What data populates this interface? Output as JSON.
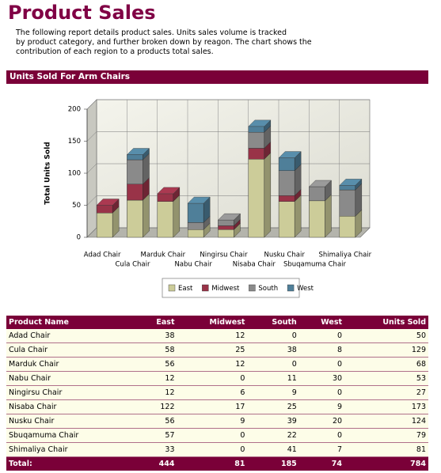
{
  "header": {
    "title": "Product Sales",
    "description": "The following report details product sales.  Units sales volume is tracked\nby product category, and further broken down by reagon.  The chart shows the\ncontribution of each region to a products total sales."
  },
  "chart_data": {
    "type": "bar",
    "stacked": true,
    "title": "Units Sold For Arm Chairs",
    "y_label": "Total Units Sold",
    "categories": [
      "Adad Chair",
      "Cula Chair",
      "Marduk Chair",
      "Nabu Chair",
      "Ningirsu Chair",
      "Nisaba Chair",
      "Nusku Chair",
      "Sbuqamuma Chair",
      "Shimaliya Chair"
    ],
    "series": [
      {
        "name": "East",
        "color": "#cccc99",
        "values": [
          38,
          58,
          56,
          12,
          12,
          122,
          56,
          57,
          33
        ]
      },
      {
        "name": "Midwest",
        "color": "#993348",
        "values": [
          12,
          25,
          12,
          0,
          6,
          17,
          9,
          0,
          0
        ]
      },
      {
        "name": "South",
        "color": "#8a8a8a",
        "values": [
          0,
          38,
          0,
          11,
          9,
          25,
          39,
          22,
          41
        ]
      },
      {
        "name": "West",
        "color": "#4f7f99",
        "values": [
          0,
          8,
          0,
          30,
          0,
          9,
          20,
          0,
          7
        ]
      }
    ],
    "ylim": [
      0,
      200
    ],
    "yticks": [
      0,
      50,
      100,
      150,
      200
    ],
    "grid": true,
    "legend": "bottom"
  },
  "table": {
    "columns": [
      "Product Name",
      "East",
      "Midwest",
      "South",
      "West",
      "Units Sold"
    ],
    "rows": [
      [
        "Adad Chair",
        38,
        12,
        0,
        0,
        50
      ],
      [
        "Cula Chair",
        58,
        25,
        38,
        8,
        129
      ],
      [
        "Marduk Chair",
        56,
        12,
        0,
        0,
        68
      ],
      [
        "Nabu Chair",
        12,
        0,
        11,
        30,
        53
      ],
      [
        "Ningirsu Chair",
        12,
        6,
        9,
        0,
        27
      ],
      [
        "Nisaba Chair",
        122,
        17,
        25,
        9,
        173
      ],
      [
        "Nusku Chair",
        56,
        9,
        39,
        20,
        124
      ],
      [
        "Sbuqamuma Chair",
        57,
        0,
        22,
        0,
        79
      ],
      [
        "Shimaliya Chair",
        33,
        0,
        41,
        7,
        81
      ]
    ],
    "total": [
      "Total:",
      444,
      81,
      185,
      74,
      784
    ]
  }
}
